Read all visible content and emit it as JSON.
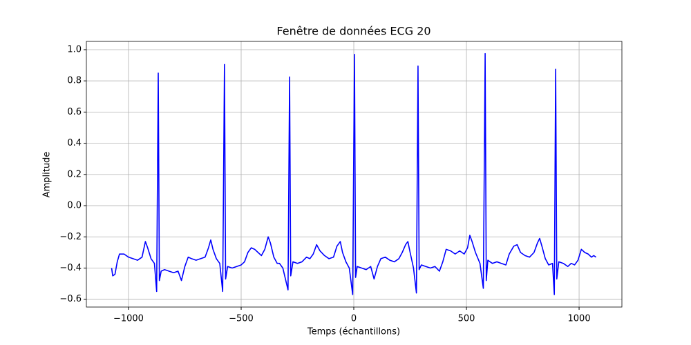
{
  "chart_data": {
    "type": "line",
    "title": "Fenêtre de données ECG 20",
    "xlabel": "Temps (échantillons)",
    "ylabel": "Amplitude",
    "xlim": [
      -1187,
      1190
    ],
    "ylim": [
      -0.65,
      1.053
    ],
    "xticks": [
      {
        "value": -1000,
        "label": "−1000"
      },
      {
        "value": -500,
        "label": "−500"
      },
      {
        "value": 0,
        "label": "0"
      },
      {
        "value": 500,
        "label": "500"
      },
      {
        "value": 1000,
        "label": "1000"
      }
    ],
    "yticks": [
      {
        "value": -0.6,
        "label": "−0.6"
      },
      {
        "value": -0.4,
        "label": "−0.4"
      },
      {
        "value": -0.2,
        "label": "−0.2"
      },
      {
        "value": 0,
        "label": "0.0"
      },
      {
        "value": 0.2,
        "label": "0.2"
      },
      {
        "value": 0.4,
        "label": "0.4"
      },
      {
        "value": 0.6,
        "label": "0.6"
      },
      {
        "value": 0.8,
        "label": "0.8"
      },
      {
        "value": 1.0,
        "label": "1.0"
      }
    ],
    "grid": true,
    "x": [
      -1075,
      -1070,
      -1060,
      -1050,
      -1040,
      -1020,
      -1000,
      -980,
      -960,
      -940,
      -925,
      -915,
      -900,
      -885,
      -875,
      -868,
      -863,
      -855,
      -840,
      -820,
      -800,
      -780,
      -765,
      -750,
      -735,
      -720,
      -700,
      -680,
      -660,
      -645,
      -635,
      -625,
      -610,
      -595,
      -582,
      -574,
      -569,
      -560,
      -540,
      -520,
      -500,
      -485,
      -470,
      -455,
      -440,
      -425,
      -410,
      -395,
      -380,
      -370,
      -355,
      -340,
      -330,
      -315,
      -292,
      -285,
      -280,
      -270,
      -250,
      -230,
      -210,
      -195,
      -180,
      -165,
      -150,
      -130,
      -110,
      -90,
      -75,
      -60,
      -50,
      -35,
      -20,
      -5,
      3,
      8,
      15,
      35,
      55,
      75,
      90,
      105,
      120,
      140,
      160,
      180,
      200,
      215,
      230,
      240,
      250,
      265,
      278,
      285,
      290,
      300,
      320,
      340,
      360,
      380,
      395,
      410,
      430,
      450,
      470,
      490,
      505,
      515,
      525,
      540,
      560,
      575,
      583,
      588,
      595,
      615,
      635,
      655,
      675,
      690,
      710,
      725,
      740,
      760,
      780,
      800,
      815,
      825,
      835,
      850,
      865,
      882,
      890,
      896,
      901,
      910,
      930,
      950,
      965,
      980,
      995,
      1010,
      1025,
      1040,
      1055,
      1065,
      1075
    ],
    "series": [
      {
        "color": "#0000ff",
        "values": [
          -0.4,
          -0.45,
          -0.44,
          -0.36,
          -0.31,
          -0.31,
          -0.33,
          -0.34,
          -0.35,
          -0.33,
          -0.23,
          -0.27,
          -0.34,
          -0.37,
          -0.55,
          0.85,
          -0.48,
          -0.42,
          -0.41,
          -0.42,
          -0.43,
          -0.42,
          -0.48,
          -0.39,
          -0.33,
          -0.34,
          -0.35,
          -0.34,
          -0.33,
          -0.27,
          -0.22,
          -0.28,
          -0.34,
          -0.37,
          -0.55,
          0.905,
          -0.47,
          -0.39,
          -0.4,
          -0.39,
          -0.38,
          -0.36,
          -0.3,
          -0.27,
          -0.28,
          -0.3,
          -0.32,
          -0.28,
          -0.2,
          -0.24,
          -0.33,
          -0.37,
          -0.37,
          -0.4,
          -0.54,
          0.825,
          -0.45,
          -0.36,
          -0.37,
          -0.36,
          -0.33,
          -0.34,
          -0.31,
          -0.25,
          -0.29,
          -0.32,
          -0.34,
          -0.33,
          -0.26,
          -0.23,
          -0.3,
          -0.36,
          -0.4,
          -0.57,
          0.97,
          -0.46,
          -0.39,
          -0.4,
          -0.41,
          -0.39,
          -0.47,
          -0.39,
          -0.34,
          -0.33,
          -0.35,
          -0.36,
          -0.34,
          -0.3,
          -0.25,
          -0.23,
          -0.3,
          -0.4,
          -0.56,
          0.895,
          -0.41,
          -0.38,
          -0.39,
          -0.4,
          -0.39,
          -0.42,
          -0.36,
          -0.28,
          -0.29,
          -0.31,
          -0.29,
          -0.31,
          -0.27,
          -0.19,
          -0.23,
          -0.3,
          -0.37,
          -0.53,
          0.975,
          -0.48,
          -0.35,
          -0.37,
          -0.36,
          -0.37,
          -0.38,
          -0.31,
          -0.26,
          -0.25,
          -0.3,
          -0.32,
          -0.33,
          -0.3,
          -0.24,
          -0.21,
          -0.26,
          -0.34,
          -0.38,
          -0.37,
          -0.57,
          0.875,
          -0.47,
          -0.36,
          -0.37,
          -0.39,
          -0.37,
          -0.38,
          -0.35,
          -0.28,
          -0.3,
          -0.31,
          -0.33,
          -0.32,
          -0.33
        ]
      }
    ]
  }
}
